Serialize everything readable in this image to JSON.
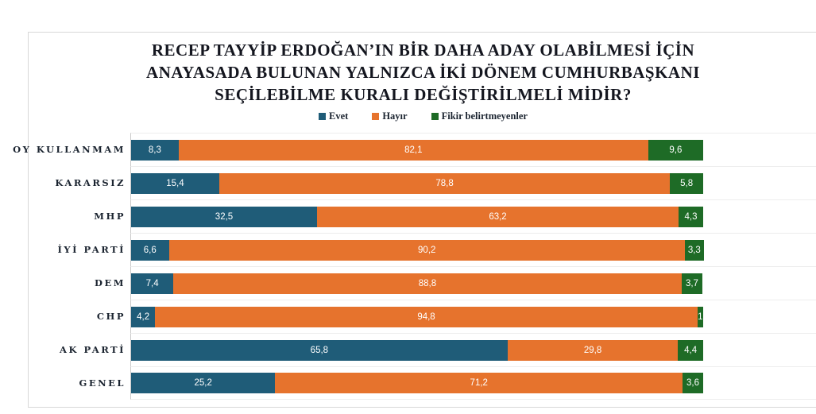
{
  "header": {
    "title_lines": [
      "RECEP TAYYİP ERDOĞAN’IN BİR DAHA ADAY OLABİLMESİ İÇİN",
      "ANAYASADA BULUNAN YALNIZCA İKİ DÖNEM CUMHURBAŞKANI",
      "SEÇİLEBİLME KURALI DEĞİŞTİRİLMELİ MİDİR?"
    ]
  },
  "legend": {
    "items": [
      {
        "label": "Evet",
        "color": "#1f5c78"
      },
      {
        "label": "Hayır",
        "color": "#e6732d"
      },
      {
        "label": "Fikir belirtmeyenler",
        "color": "#1e6b26"
      }
    ]
  },
  "chart_data": {
    "type": "bar",
    "orientation": "horizontal",
    "stacked": true,
    "title": "RECEP TAYYİP ERDOĞAN’IN BİR DAHA ADAY OLABİLMESİ İÇİN ANAYASADA BULUNAN YALNIZCA İKİ DÖNEM CUMHURBAŞKANI SEÇİLEBİLME KURALI DEĞİŞTİRİLMELİ MİDİR?",
    "legend_position": "top",
    "grid": "row-separators",
    "xlim": [
      0,
      120
    ],
    "categories": [
      "OY KULLANMAM",
      "KARARSIZ",
      "MHP",
      "İYİ PARTİ",
      "DEM",
      "CHP",
      "AK PARTİ",
      "GENEL"
    ],
    "series": [
      {
        "name": "Evet",
        "key": "evet",
        "color": "#1f5c78",
        "values": [
          8.3,
          15.4,
          32.5,
          6.6,
          7.4,
          4.2,
          65.8,
          25.2
        ],
        "labels": [
          "8,3",
          "15,4",
          "32,5",
          "6,6",
          "7,4",
          "4,2",
          "65,8",
          "25,2"
        ]
      },
      {
        "name": "Hayır",
        "key": "hayir",
        "color": "#e6732d",
        "values": [
          82.1,
          78.8,
          63.2,
          90.2,
          88.8,
          94.8,
          29.8,
          71.2
        ],
        "labels": [
          "82,1",
          "78,8",
          "63,2",
          "90,2",
          "88,8",
          "94,8",
          "29,8",
          "71,2"
        ]
      },
      {
        "name": "Fikir belirtmeyenler",
        "key": "fikir",
        "color": "#1e6b26",
        "values": [
          9.6,
          5.8,
          4.3,
          3.3,
          3.7,
          1,
          4.4,
          3.6
        ],
        "labels": [
          "9,6",
          "5,8",
          "4,3",
          "3,3",
          "3,7",
          "1",
          "4,4",
          "3,6"
        ]
      }
    ]
  },
  "colors": {
    "frame_border": "#d8d8d8",
    "grid_line": "#ededed",
    "axis_line": "#c9c9c9",
    "title_text": "#14161f",
    "category_text": "#1b2430",
    "value_text": "#ffffff",
    "background": "#ffffff"
  }
}
